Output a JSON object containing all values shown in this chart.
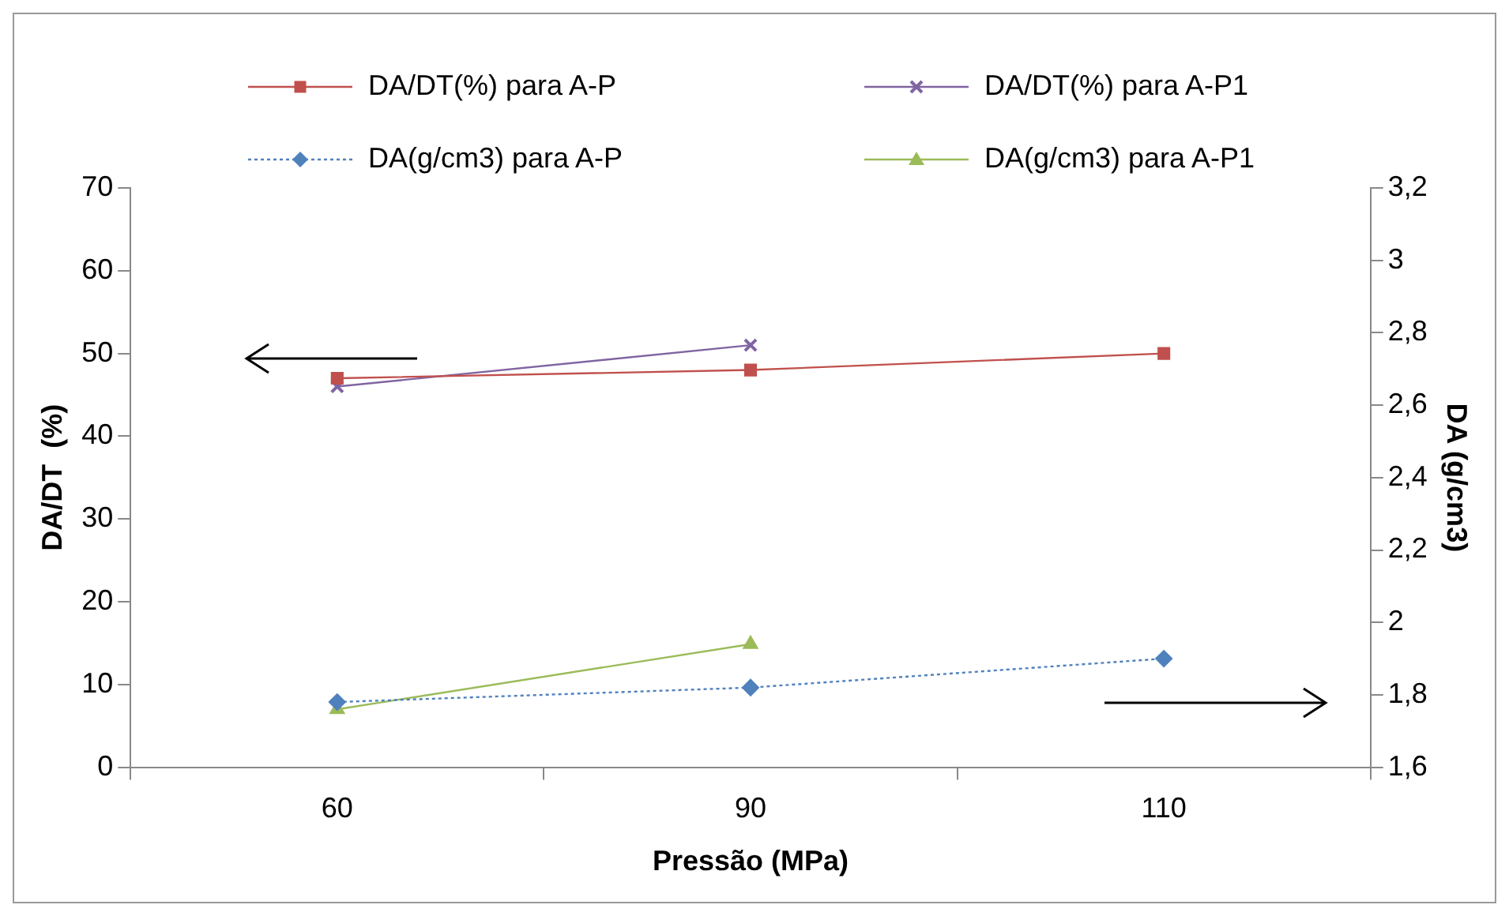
{
  "chart_data": {
    "type": "line",
    "xlabel": "Pressão (MPa)",
    "ylabel": "DA/DT  (%)",
    "y2label": "DA (g/cm3)",
    "categories": [
      "60",
      "90",
      "110"
    ],
    "series": [
      {
        "name": "DA/DT(%) para A-P",
        "color": "#c0504d",
        "values": [
          47,
          48,
          50
        ],
        "marker": "square",
        "line_style": "solid"
      },
      {
        "name": "DA/DT(%) para A-P1",
        "color": "#8064a2",
        "values": [
          46,
          51,
          null
        ],
        "marker": "cross",
        "line_style": "solid"
      },
      {
        "name": "DA(g/cm3) para A-P",
        "color": "#4f81bd",
        "values": [
          1.78,
          1.82,
          1.9
        ],
        "marker": "diamond",
        "line_style": "dotted",
        "axis": "y2"
      },
      {
        "name": "DA(g/cm3) para A-P1",
        "color": "#9bbb59",
        "values": [
          1.76,
          1.94,
          null
        ],
        "marker": "triangle",
        "line_style": "solid",
        "axis": "y2"
      }
    ],
    "ylim": [
      0,
      70
    ],
    "yticks": [
      0,
      10,
      20,
      30,
      40,
      50,
      60,
      70
    ],
    "y2lim": [
      1.6,
      3.2
    ],
    "y2ticks": [
      {
        "value": 1.6,
        "label": "1,6"
      },
      {
        "value": 1.8,
        "label": "1,8"
      },
      {
        "value": 2,
        "label": "2"
      },
      {
        "value": 2.2,
        "label": "2,2"
      },
      {
        "value": 2.4,
        "label": "2,4"
      },
      {
        "value": 2.6,
        "label": "2,6"
      },
      {
        "value": 2.8,
        "label": "2,8"
      },
      {
        "value": 3,
        "label": "3"
      },
      {
        "value": 3.2,
        "label": "3,2"
      }
    ],
    "grid": false,
    "legend": "top"
  }
}
